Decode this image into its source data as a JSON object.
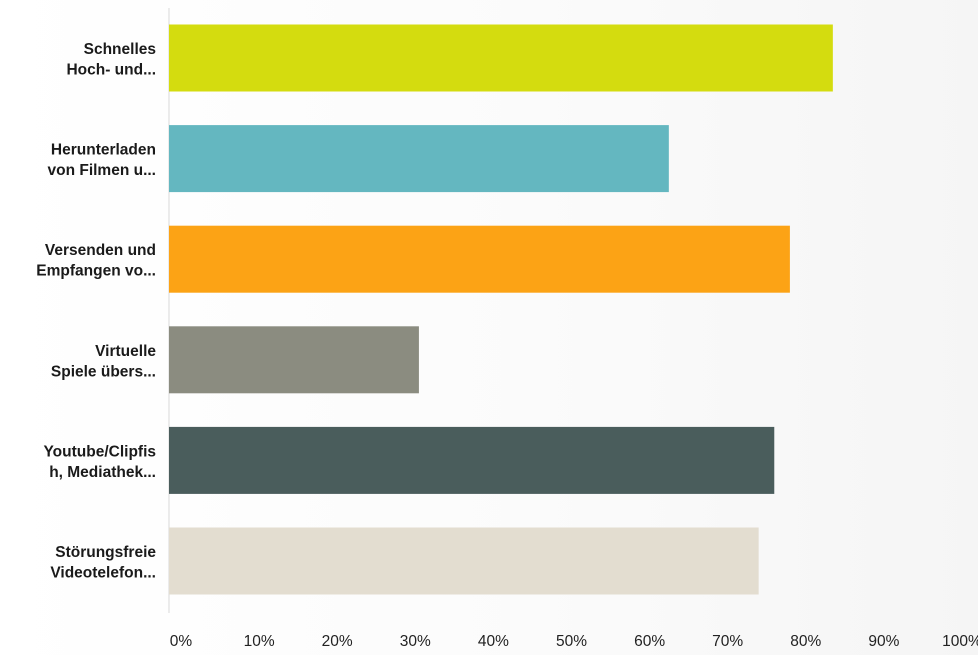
{
  "chart_data": {
    "type": "bar",
    "orientation": "horizontal",
    "categories": [
      [
        "Schnelles",
        "Hoch- und..."
      ],
      [
        "Herunterladen",
        "von Filmen u..."
      ],
      [
        "Versenden und",
        "Empfangen vo..."
      ],
      [
        "Virtuelle",
        "Spiele übers..."
      ],
      [
        "Youtube/Clipfis",
        "h, Mediathek..."
      ],
      [
        "Störungsfreie",
        "Videotelefon..."
      ]
    ],
    "values": [
      85,
      64,
      79.5,
      32,
      77.5,
      75.5
    ],
    "colors": [
      "#d4dc0f",
      "#64b7c0",
      "#fca315",
      "#8b8c80",
      "#4a5d5c",
      "#e3ddd0"
    ],
    "xlim": [
      0,
      100
    ],
    "x_ticks": [
      0,
      10,
      20,
      30,
      40,
      50,
      60,
      70,
      80,
      90,
      100
    ],
    "x_tick_labels": [
      "0%",
      "10%",
      "20%",
      "30%",
      "40%",
      "50%",
      "60%",
      "70%",
      "80%",
      "90%",
      "100%"
    ],
    "grid": false,
    "legend": "none"
  }
}
